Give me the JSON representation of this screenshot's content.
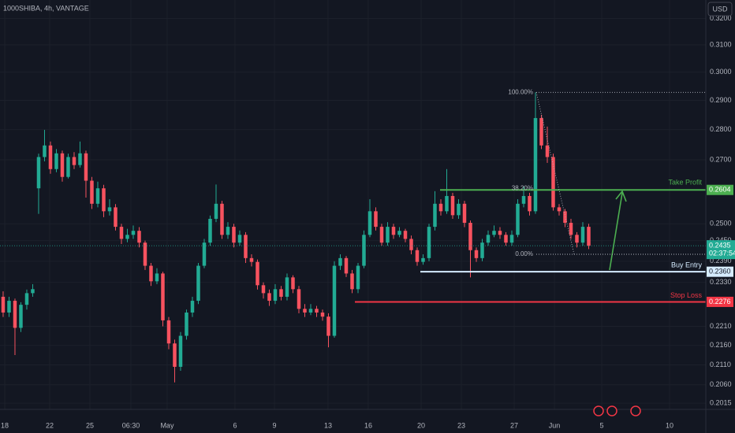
{
  "chart_data": {
    "type": "candlestick",
    "title": "1000SHIBA, 4h, VANTAGE",
    "currency": "USD",
    "log_scale": true,
    "grid": true,
    "colors": {
      "up": "#22ab94",
      "down": "#f7525f"
    },
    "ylim": [
      0.2,
      0.3272
    ],
    "yticks": [
      {
        "value": 0.32,
        "label": "0.3200"
      },
      {
        "value": 0.31,
        "label": "0.3100"
      },
      {
        "value": 0.3,
        "label": "0.3000"
      },
      {
        "value": 0.29,
        "label": "0.2900"
      },
      {
        "value": 0.28,
        "label": "0.2800"
      },
      {
        "value": 0.27,
        "label": "0.2700"
      },
      {
        "value": 0.25,
        "label": "0.2500"
      },
      {
        "value": 0.245,
        "label": "0.2450"
      },
      {
        "value": 0.239,
        "label": "0.2390"
      },
      {
        "value": 0.233,
        "label": "0.2330"
      },
      {
        "value": 0.221,
        "label": "0.2210"
      },
      {
        "value": 0.216,
        "label": "0.2160"
      },
      {
        "value": 0.211,
        "label": "0.2110"
      },
      {
        "value": 0.206,
        "label": "0.2060"
      },
      {
        "value": 0.2015,
        "label": "0.2015"
      }
    ],
    "xlim": [
      -0.53,
      118.8
    ],
    "xticks": [
      {
        "value": 0.27,
        "label": "18"
      },
      {
        "value": 7.87,
        "label": "22"
      },
      {
        "value": 14.67,
        "label": "25"
      },
      {
        "value": 21.6,
        "label": "06:30"
      },
      {
        "value": 27.73,
        "label": "May"
      },
      {
        "value": 39.2,
        "label": "6"
      },
      {
        "value": 45.87,
        "label": "9"
      },
      {
        "value": 54.93,
        "label": "13"
      },
      {
        "value": 61.73,
        "label": "16"
      },
      {
        "value": 70.67,
        "label": "20"
      },
      {
        "value": 77.47,
        "label": "23"
      },
      {
        "value": 86.4,
        "label": "27"
      },
      {
        "value": 93.2,
        "label": "Jun"
      },
      {
        "value": 101.2,
        "label": "5"
      },
      {
        "value": 112.67,
        "label": "10"
      }
    ],
    "candles": [
      [
        0.229,
        0.2305,
        0.2235,
        0.2247
      ],
      [
        0.2247,
        0.229,
        0.2235,
        0.2279
      ],
      [
        0.2279,
        0.2285,
        0.2135,
        0.2206
      ],
      [
        0.2206,
        0.2275,
        0.2195,
        0.2268
      ],
      [
        0.2268,
        0.231,
        0.2255,
        0.23
      ],
      [
        0.23,
        0.2325,
        0.229,
        0.2311
      ],
      [
        0.2609,
        0.272,
        0.253,
        0.2709
      ],
      [
        0.2709,
        0.2799,
        0.2695,
        0.2747
      ],
      [
        0.2747,
        0.276,
        0.2655,
        0.267
      ],
      [
        0.267,
        0.2735,
        0.266,
        0.2721
      ],
      [
        0.2721,
        0.273,
        0.263,
        0.2645
      ],
      [
        0.2645,
        0.272,
        0.264,
        0.2709
      ],
      [
        0.2709,
        0.2725,
        0.267,
        0.2683
      ],
      [
        0.2683,
        0.276,
        0.2675,
        0.2721
      ],
      [
        0.2721,
        0.273,
        0.258,
        0.2633
      ],
      [
        0.2633,
        0.2645,
        0.2545,
        0.2561
      ],
      [
        0.2561,
        0.263,
        0.255,
        0.2609
      ],
      [
        0.2609,
        0.262,
        0.252,
        0.2538
      ],
      [
        0.2538,
        0.2575,
        0.2525,
        0.255
      ],
      [
        0.255,
        0.256,
        0.248,
        0.2491
      ],
      [
        0.2491,
        0.25,
        0.244,
        0.2455
      ],
      [
        0.2455,
        0.2485,
        0.2445,
        0.2467
      ],
      [
        0.2467,
        0.2495,
        0.2455,
        0.2479
      ],
      [
        0.2479,
        0.249,
        0.243,
        0.2444
      ],
      [
        0.2444,
        0.245,
        0.2365,
        0.2377
      ],
      [
        0.2377,
        0.2385,
        0.232,
        0.2333
      ],
      [
        0.2333,
        0.237,
        0.2325,
        0.2355
      ],
      [
        0.2355,
        0.236,
        0.221,
        0.2226
      ],
      [
        0.2226,
        0.2235,
        0.215,
        0.2165
      ],
      [
        0.2165,
        0.2175,
        0.2066,
        0.2105
      ],
      [
        0.2105,
        0.2195,
        0.2095,
        0.2185
      ],
      [
        0.2185,
        0.2255,
        0.2175,
        0.2247
      ],
      [
        0.2247,
        0.229,
        0.2235,
        0.2279
      ],
      [
        0.2279,
        0.2385,
        0.227,
        0.2377
      ],
      [
        0.2377,
        0.2455,
        0.237,
        0.2444
      ],
      [
        0.2444,
        0.2525,
        0.2435,
        0.2515
      ],
      [
        0.2515,
        0.2621,
        0.2505,
        0.2561
      ],
      [
        0.2561,
        0.257,
        0.2455,
        0.2467
      ],
      [
        0.2467,
        0.2505,
        0.2455,
        0.2491
      ],
      [
        0.2491,
        0.25,
        0.243,
        0.2444
      ],
      [
        0.2444,
        0.248,
        0.2435,
        0.2467
      ],
      [
        0.2467,
        0.2475,
        0.2385,
        0.2399
      ],
      [
        0.2399,
        0.241,
        0.2375,
        0.2388
      ],
      [
        0.2388,
        0.2395,
        0.231,
        0.2322
      ],
      [
        0.2322,
        0.233,
        0.2285,
        0.23
      ],
      [
        0.23,
        0.231,
        0.2265,
        0.2279
      ],
      [
        0.2279,
        0.2325,
        0.227,
        0.2311
      ],
      [
        0.2311,
        0.232,
        0.228,
        0.229
      ],
      [
        0.229,
        0.2355,
        0.228,
        0.2344
      ],
      [
        0.2344,
        0.235,
        0.23,
        0.2311
      ],
      [
        0.2311,
        0.232,
        0.2245,
        0.2257
      ],
      [
        0.2257,
        0.227,
        0.2235,
        0.2247
      ],
      [
        0.2247,
        0.227,
        0.224,
        0.2257
      ],
      [
        0.2257,
        0.2265,
        0.2235,
        0.2247
      ],
      [
        0.2247,
        0.2255,
        0.2225,
        0.2236
      ],
      [
        0.2236,
        0.2245,
        0.2155,
        0.2185
      ],
      [
        0.2185,
        0.239,
        0.218,
        0.2377
      ],
      [
        0.2377,
        0.241,
        0.2365,
        0.2399
      ],
      [
        0.2399,
        0.2405,
        0.2345,
        0.2355
      ],
      [
        0.2355,
        0.2365,
        0.23,
        0.2311
      ],
      [
        0.2311,
        0.2385,
        0.23,
        0.2377
      ],
      [
        0.2377,
        0.248,
        0.237,
        0.2467
      ],
      [
        0.2467,
        0.2575,
        0.246,
        0.2538
      ],
      [
        0.2538,
        0.255,
        0.248,
        0.2491
      ],
      [
        0.2491,
        0.25,
        0.2435,
        0.2444
      ],
      [
        0.2444,
        0.2505,
        0.2435,
        0.2491
      ],
      [
        0.2491,
        0.25,
        0.2455,
        0.2467
      ],
      [
        0.2467,
        0.249,
        0.246,
        0.2479
      ],
      [
        0.2479,
        0.2485,
        0.2445,
        0.2455
      ],
      [
        0.2455,
        0.2465,
        0.241,
        0.2422
      ],
      [
        0.2422,
        0.243,
        0.2377,
        0.2388
      ],
      [
        0.2388,
        0.241,
        0.238,
        0.2399
      ],
      [
        0.2399,
        0.25,
        0.239,
        0.2491
      ],
      [
        0.2491,
        0.26,
        0.248,
        0.2561
      ],
      [
        0.2561,
        0.2575,
        0.2525,
        0.2538
      ],
      [
        0.2538,
        0.267,
        0.253,
        0.2585
      ],
      [
        0.2585,
        0.2595,
        0.2515,
        0.2526
      ],
      [
        0.2526,
        0.2575,
        0.2515,
        0.2561
      ],
      [
        0.2561,
        0.257,
        0.249,
        0.2503
      ],
      [
        0.2503,
        0.251,
        0.2344,
        0.2422
      ],
      [
        0.2422,
        0.243,
        0.2388,
        0.2399
      ],
      [
        0.2399,
        0.2455,
        0.239,
        0.2444
      ],
      [
        0.2444,
        0.248,
        0.2435,
        0.2467
      ],
      [
        0.2467,
        0.2495,
        0.246,
        0.2479
      ],
      [
        0.2479,
        0.249,
        0.2455,
        0.2467
      ],
      [
        0.2467,
        0.2475,
        0.2435,
        0.2444
      ],
      [
        0.2444,
        0.248,
        0.2435,
        0.2467
      ],
      [
        0.2467,
        0.2575,
        0.246,
        0.2561
      ],
      [
        0.2561,
        0.2615,
        0.255,
        0.2585
      ],
      [
        0.2585,
        0.2595,
        0.2525,
        0.2538
      ],
      [
        0.2538,
        0.2928,
        0.253,
        0.2839
      ],
      [
        0.2839,
        0.285,
        0.2735,
        0.2747
      ],
      [
        0.2747,
        0.281,
        0.269,
        0.2709
      ],
      [
        0.2709,
        0.272,
        0.254,
        0.255
      ],
      [
        0.255,
        0.256,
        0.2525,
        0.2538
      ],
      [
        0.2538,
        0.2545,
        0.249,
        0.2503
      ],
      [
        0.2503,
        0.2515,
        0.2455,
        0.2467
      ],
      [
        0.2467,
        0.2475,
        0.243,
        0.2444
      ],
      [
        0.2444,
        0.2505,
        0.2435,
        0.2491
      ],
      [
        0.2491,
        0.25,
        0.2425,
        0.2435
      ]
    ],
    "last_price": 0.2435,
    "countdown": "02:37:54",
    "levels": [
      {
        "name": "Take Profit",
        "value": 0.2604,
        "color": "#4caf50"
      },
      {
        "name": "Buy Entry",
        "value": 0.236,
        "value_label": "0.2360",
        "color": "#d6ecff"
      },
      {
        "name": "Stop Loss",
        "value": 0.2276,
        "color": "#f23645"
      }
    ],
    "fib": [
      {
        "label": "100.00%",
        "value": 0.2928
      },
      {
        "label": "38.20%",
        "value": 0.2608
      },
      {
        "label": "0.00%",
        "value": 0.241
      }
    ]
  }
}
